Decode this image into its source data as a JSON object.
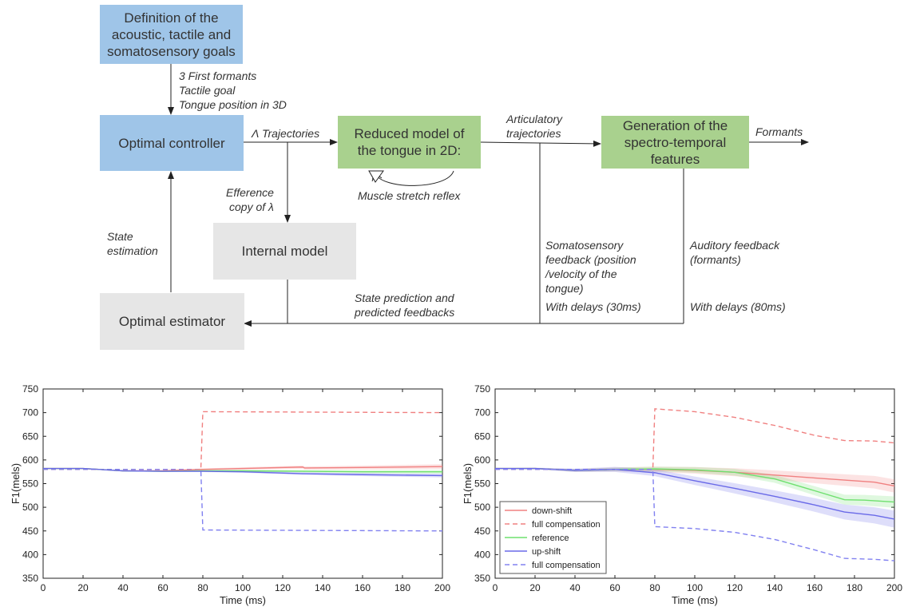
{
  "diagram": {
    "boxes": {
      "goals": "Definition of the acoustic, tactile and somatosensory  goals",
      "controller": "Optimal controller",
      "tongue": "Reduced model of the tongue in 2D:",
      "generation": "Generation of the spectro-temporal features",
      "internal": "Internal model",
      "estimator": "Optimal estimator"
    },
    "labels": {
      "goals_out": "3 First formants\nTactile goal\nTongue position in 3D",
      "lambda_traj": "Λ Trajectories",
      "articulatory": "Articulatory\ntrajectories",
      "formants": "Formants",
      "muscle": "Muscle stretch reflex",
      "efference": "Efference\ncopy of λ",
      "state_estimation": "State\nestimation",
      "somatosensory": "Somatosensory\nfeedback (position\n/velocity of the\ntongue)",
      "delay30": "With delays (30ms)",
      "auditory": "Auditory feedback\n(formants)",
      "delay80": "With delays (80ms)",
      "state_prediction": "State prediction and\npredicted feedbacks"
    }
  },
  "chart_data": [
    {
      "type": "line",
      "title": "",
      "xlabel": "Time (ms)",
      "ylabel": "F1(mels)",
      "xlim": [
        0,
        200
      ],
      "ylim": [
        350,
        750
      ],
      "xticks": [
        0,
        20,
        40,
        60,
        80,
        100,
        120,
        140,
        160,
        180,
        200
      ],
      "yticks": [
        350,
        400,
        450,
        500,
        550,
        600,
        650,
        700,
        750
      ],
      "legend": null,
      "series": [
        {
          "color": "#f08080",
          "dash": true,
          "x": [
            0,
            79,
            80,
            200
          ],
          "y": [
            580,
            580,
            702,
            700
          ]
        },
        {
          "color": "#8080f0",
          "dash": true,
          "x": [
            0,
            79,
            80,
            200
          ],
          "y": [
            580,
            580,
            452,
            450
          ]
        },
        {
          "color": "#f08080",
          "dash": false,
          "band": 5,
          "x": [
            0,
            20,
            40,
            60,
            80,
            100,
            130,
            131,
            160,
            200
          ],
          "y": [
            582,
            582,
            577,
            577,
            580,
            582,
            585,
            583,
            584,
            586
          ]
        },
        {
          "color": "#6fe06f",
          "dash": false,
          "band": 4,
          "x": [
            0,
            20,
            40,
            60,
            80,
            100,
            130,
            160,
            200
          ],
          "y": [
            582,
            582,
            577,
            576,
            577,
            577,
            576,
            575,
            575
          ]
        },
        {
          "color": "#6a6ae8",
          "dash": false,
          "band": 4,
          "x": [
            0,
            20,
            40,
            60,
            80,
            100,
            130,
            160,
            200
          ],
          "y": [
            582,
            582,
            577,
            576,
            576,
            575,
            571,
            569,
            567
          ]
        }
      ]
    },
    {
      "type": "line",
      "title": "",
      "xlabel": "Time (ms)",
      "ylabel": "F1(mels)",
      "xlim": [
        0,
        200
      ],
      "ylim": [
        350,
        750
      ],
      "xticks": [
        0,
        20,
        40,
        60,
        80,
        100,
        120,
        140,
        160,
        180,
        200
      ],
      "yticks": [
        350,
        400,
        450,
        500,
        550,
        600,
        650,
        700,
        750
      ],
      "legend": "bottom-left",
      "series": [
        {
          "name": "down-shift",
          "color": "#f08080",
          "dash": false,
          "band": 14,
          "x": [
            0,
            20,
            40,
            60,
            80,
            100,
            120,
            140,
            160,
            180,
            190,
            200
          ],
          "y": [
            582,
            582,
            578,
            580,
            580,
            578,
            574,
            568,
            562,
            556,
            553,
            545
          ]
        },
        {
          "name": "full compensation",
          "color": "#f08080",
          "dash": true,
          "x": [
            0,
            79,
            80,
            100,
            120,
            140,
            160,
            175,
            190,
            200
          ],
          "y": [
            580,
            580,
            708,
            702,
            690,
            673,
            652,
            641,
            640,
            636
          ]
        },
        {
          "name": "reference",
          "color": "#6fe06f",
          "dash": false,
          "band": 12,
          "x": [
            0,
            20,
            40,
            60,
            80,
            100,
            120,
            140,
            160,
            175,
            185,
            200
          ],
          "y": [
            582,
            582,
            578,
            580,
            581,
            579,
            574,
            560,
            535,
            516,
            515,
            511
          ]
        },
        {
          "name": "up-shift",
          "color": "#6a6ae8",
          "dash": false,
          "band": 18,
          "x": [
            0,
            20,
            40,
            60,
            80,
            100,
            120,
            140,
            160,
            175,
            190,
            200
          ],
          "y": [
            582,
            582,
            578,
            580,
            573,
            556,
            540,
            523,
            505,
            490,
            483,
            475
          ]
        },
        {
          "name": "full compensation",
          "color": "#8080f0",
          "dash": true,
          "x": [
            0,
            79,
            80,
            100,
            120,
            140,
            160,
            175,
            190,
            200
          ],
          "y": [
            580,
            580,
            459,
            455,
            447,
            432,
            410,
            392,
            390,
            387
          ]
        }
      ]
    }
  ]
}
